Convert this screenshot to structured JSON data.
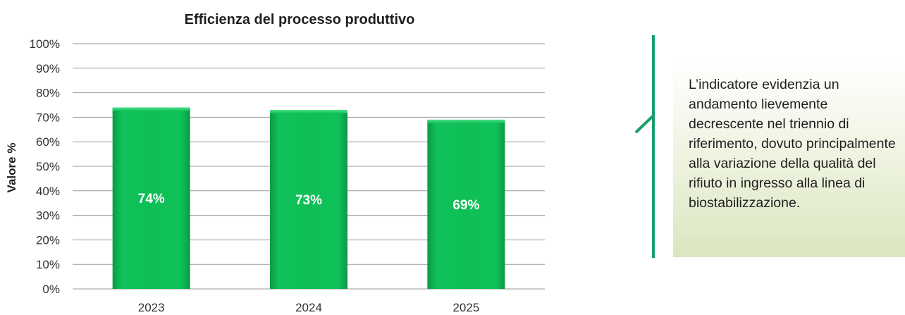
{
  "chart_data": {
    "type": "bar",
    "title": "Efficienza del processo produttivo",
    "ylabel": "Valore %",
    "xlabel": "",
    "categories": [
      "2023",
      "2024",
      "2025"
    ],
    "values": [
      74,
      73,
      69
    ],
    "data_labels": [
      "74%",
      "73%",
      "69%"
    ],
    "ylim": [
      0,
      100
    ],
    "yticks": [
      "0%",
      "10%",
      "20%",
      "30%",
      "40%",
      "50%",
      "60%",
      "70%",
      "80%",
      "90%",
      "100%"
    ],
    "ytick_values": [
      0,
      10,
      20,
      30,
      40,
      50,
      60,
      70,
      80,
      90,
      100
    ],
    "grid": true,
    "legend": "none",
    "colors": {
      "bar": "#0fbf55",
      "bar_dark": "#0a9a43",
      "callout_line": "#179e6c"
    }
  },
  "callout": {
    "text": "L’indicatore evidenzia un andamento lievemente decrescente nel triennio di riferimento, dovuto principalmente alla variazione della qualità del rifiuto in ingresso alla linea di biostabilizzazione."
  }
}
